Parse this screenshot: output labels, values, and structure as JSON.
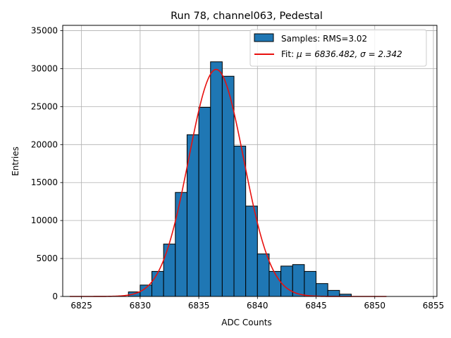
{
  "chart_data": {
    "type": "bar",
    "title": "Run 78, channel063, Pedestal",
    "xlabel": "ADC Counts",
    "ylabel": "Entries",
    "xlim": [
      6823.4,
      6855.3
    ],
    "ylim": [
      0,
      35700
    ],
    "xticks": [
      6825,
      6830,
      6835,
      6840,
      6845,
      6850,
      6855
    ],
    "yticks": [
      0,
      5000,
      10000,
      15000,
      20000,
      25000,
      30000,
      35000
    ],
    "grid": true,
    "legend_position": "top-right",
    "histogram": {
      "name": "Samples: RMS=3.02",
      "color": "#1f77b4",
      "bin_edges": [
        6824,
        6825,
        6826,
        6827,
        6828,
        6829,
        6830,
        6831,
        6832,
        6833,
        6834,
        6835,
        6836,
        6837,
        6838,
        6839,
        6840,
        6841,
        6842,
        6843,
        6844,
        6845,
        6846,
        6847,
        6848,
        6849,
        6850,
        6851
      ],
      "counts": [
        0,
        0,
        0,
        0,
        0,
        600,
        1500,
        3300,
        6900,
        13700,
        21300,
        24900,
        30900,
        29000,
        19800,
        11900,
        5600,
        3300,
        4000,
        4200,
        3300,
        1700,
        800,
        300,
        0,
        0,
        0
      ]
    },
    "fit": {
      "name_prefix": "Fit: ",
      "name": "μ = 6836.482, σ = 2.342",
      "color": "#e8100e",
      "mu": 6836.482,
      "sigma": 2.342,
      "amplitude": 29900,
      "x_range": [
        6824,
        6851
      ]
    }
  }
}
